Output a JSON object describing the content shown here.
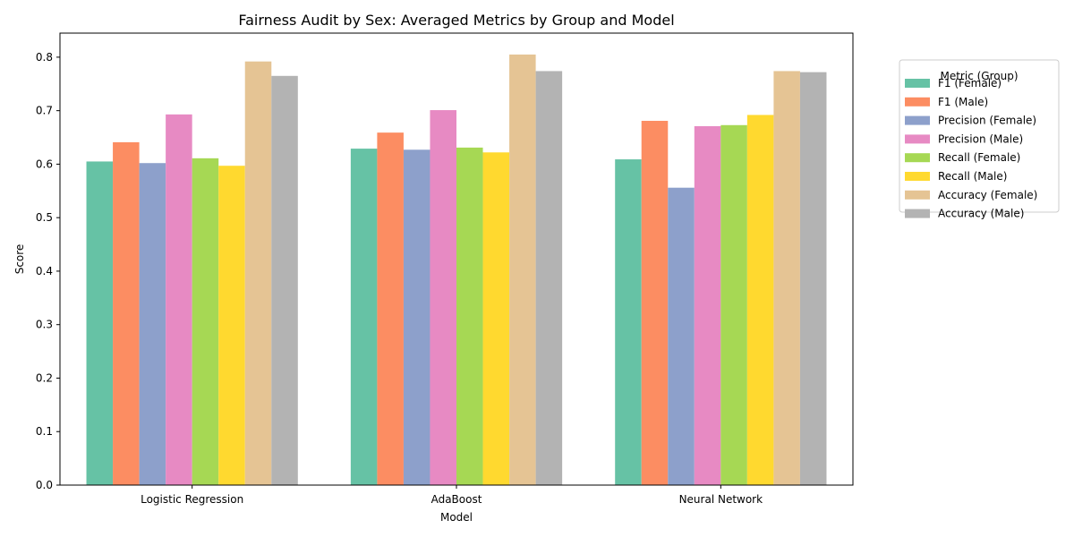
{
  "chart_data": {
    "type": "bar",
    "title": "Fairness Audit by Sex: Averaged Metrics by Group and Model",
    "xlabel": "Model",
    "ylabel": "Score",
    "ylim": [
      0,
      0.845
    ],
    "yticks": [
      "0.0",
      "0.1",
      "0.2",
      "0.3",
      "0.4",
      "0.5",
      "0.6",
      "0.7",
      "0.8"
    ],
    "categories": [
      "Logistic Regression",
      "AdaBoost",
      "Neural Network"
    ],
    "legend_title": "Metric (Group)",
    "legend_position": "outside-right",
    "grid": false,
    "series": [
      {
        "name": "F1 (Female)",
        "color": "#66c2a5",
        "values": [
          0.605,
          0.629,
          0.609
        ]
      },
      {
        "name": "F1 (Male)",
        "color": "#fc8d62",
        "values": [
          0.641,
          0.659,
          0.681
        ]
      },
      {
        "name": "Precision (Female)",
        "color": "#8da0cb",
        "values": [
          0.602,
          0.627,
          0.556
        ]
      },
      {
        "name": "Precision (Male)",
        "color": "#e78ac3",
        "values": [
          0.693,
          0.701,
          0.671
        ]
      },
      {
        "name": "Recall (Female)",
        "color": "#a6d854",
        "values": [
          0.611,
          0.631,
          0.673
        ]
      },
      {
        "name": "Recall (Male)",
        "color": "#ffd92f",
        "values": [
          0.597,
          0.622,
          0.692
        ]
      },
      {
        "name": "Accuracy (Female)",
        "color": "#e5c494",
        "values": [
          0.792,
          0.805,
          0.774
        ]
      },
      {
        "name": "Accuracy (Male)",
        "color": "#b3b3b3",
        "values": [
          0.765,
          0.774,
          0.772
        ]
      }
    ]
  }
}
